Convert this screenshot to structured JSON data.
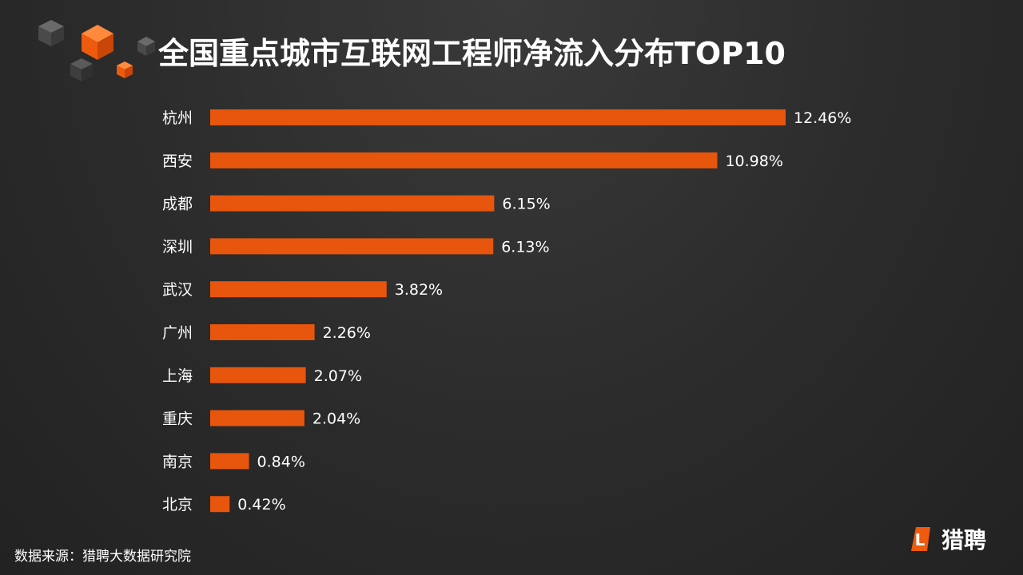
{
  "header": {
    "title": "全国重点城市互联网工程师净流入分布TOP10"
  },
  "footer": {
    "source": "数据来源：猎聘大数据研究院"
  },
  "brand": {
    "name": "猎聘",
    "logo_letter": "L",
    "accent": "#ee5a0e"
  },
  "colors": {
    "bar": "#e8550c",
    "text": "#ffffff",
    "cube_gray": "#555555",
    "cube_orange": "#ec5a12"
  },
  "chart_data": {
    "type": "bar",
    "orientation": "horizontal",
    "title": "全国重点城市互联网工程师净流入分布TOP10",
    "categories": [
      "杭州",
      "西安",
      "成都",
      "深圳",
      "武汉",
      "广州",
      "上海",
      "重庆",
      "南京",
      "北京"
    ],
    "values": [
      12.46,
      10.98,
      6.15,
      6.13,
      3.82,
      2.26,
      2.07,
      2.04,
      0.84,
      0.42
    ],
    "value_labels": [
      "12.46%",
      "10.98%",
      "6.15%",
      "6.13%",
      "3.82%",
      "2.26%",
      "2.07%",
      "2.04%",
      "0.84%",
      "0.42%"
    ],
    "unit": "%",
    "grid": false,
    "legend": "none"
  }
}
